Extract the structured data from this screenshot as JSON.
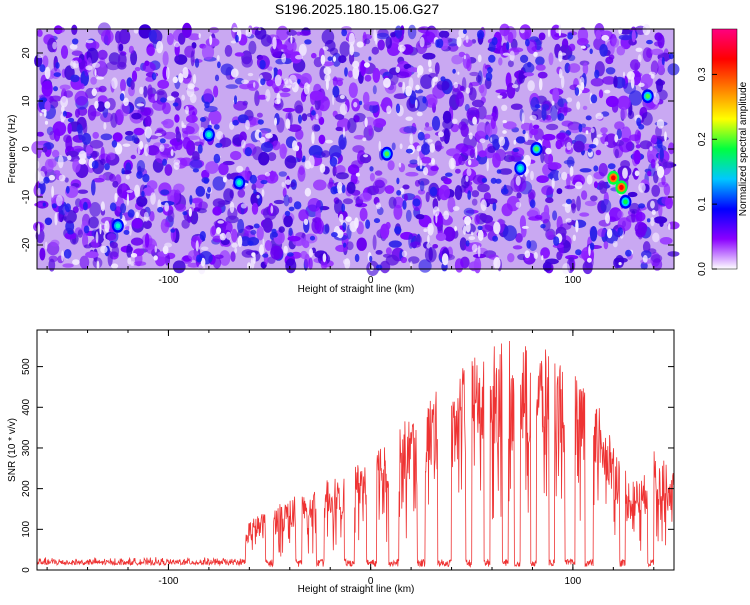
{
  "title": "S196.2025.180.15.06.G27",
  "chart_data": [
    {
      "type": "heatmap",
      "xlabel": "Height of straight line (km)",
      "ylabel": "Frequency (Hz)",
      "xlim": [
        -165,
        150
      ],
      "ylim": [
        -25,
        25
      ],
      "xticks": [
        -100,
        0,
        100
      ],
      "yticks": [
        -20,
        -10,
        0,
        10,
        20
      ],
      "colorbar": {
        "label": "Normalized spectral amplitude",
        "range": [
          0.0,
          0.37
        ],
        "ticks": [
          0.0,
          0.1,
          0.2,
          0.3
        ],
        "tick_labels": [
          "0.0",
          "0.1",
          "0.2",
          "0.3"
        ],
        "colors": [
          "#ffffff",
          "#8a00ff",
          "#0000ff",
          "#00c8ff",
          "#00ff40",
          "#ffff00",
          "#ff8000",
          "#ff0000",
          "#ff0080"
        ]
      },
      "hotspots": [
        {
          "x": 120,
          "y": -6,
          "value": 0.36
        },
        {
          "x": 124,
          "y": -8,
          "value": 0.33
        },
        {
          "x": 126,
          "y": -11,
          "value": 0.2
        },
        {
          "x": 8,
          "y": -1,
          "value": 0.18
        },
        {
          "x": 82,
          "y": 0,
          "value": 0.16
        },
        {
          "x": 137,
          "y": 11,
          "value": 0.15
        },
        {
          "x": -125,
          "y": -16,
          "value": 0.12
        },
        {
          "x": -65,
          "y": -7,
          "value": 0.1
        },
        {
          "x": -80,
          "y": 3,
          "value": 0.1
        },
        {
          "x": 74,
          "y": -4,
          "value": 0.09
        }
      ]
    },
    {
      "type": "line",
      "xlabel": "Height of straight line (km)",
      "ylabel": "SNR (10 * v/v)",
      "xlim": [
        -165,
        150
      ],
      "ylim": [
        0,
        590
      ],
      "xticks": [
        -100,
        0,
        100
      ],
      "yticks": [
        0,
        100,
        200,
        300,
        400,
        500
      ],
      "color": "#ee3333",
      "series": [
        {
          "envelope": [
            [
              -165,
              25
            ],
            [
              -130,
              30
            ],
            [
              -90,
              25
            ],
            [
              -63,
              28
            ],
            [
              -61,
              120
            ],
            [
              -50,
              150
            ],
            [
              -30,
              200
            ],
            [
              -10,
              250
            ],
            [
              0,
              300
            ],
            [
              10,
              350
            ],
            [
              20,
              380
            ],
            [
              30,
              430
            ],
            [
              40,
              470
            ],
            [
              50,
              520
            ],
            [
              60,
              555
            ],
            [
              70,
              565
            ],
            [
              80,
              555
            ],
            [
              90,
              535
            ],
            [
              100,
              500
            ],
            [
              110,
              450
            ],
            [
              115,
              400
            ],
            [
              120,
              320
            ],
            [
              128,
              220
            ],
            [
              135,
              230
            ],
            [
              140,
              320
            ],
            [
              145,
              270
            ],
            [
              150,
              240
            ]
          ],
          "dropouts": [
            [
              -52,
              -48
            ],
            [
              -37,
              -34
            ],
            [
              -27,
              -23
            ],
            [
              -13,
              -8
            ],
            [
              -2,
              3
            ],
            [
              9,
              14
            ],
            [
              23,
              27
            ],
            [
              33,
              40
            ],
            [
              47,
              50
            ],
            [
              56,
              59
            ],
            [
              65,
              68
            ],
            [
              71,
              74
            ],
            [
              79,
              82
            ],
            [
              88,
              91
            ],
            [
              96,
              101
            ],
            [
              106,
              110
            ],
            [
              123,
              126
            ],
            [
              137,
              140
            ]
          ]
        }
      ]
    }
  ]
}
